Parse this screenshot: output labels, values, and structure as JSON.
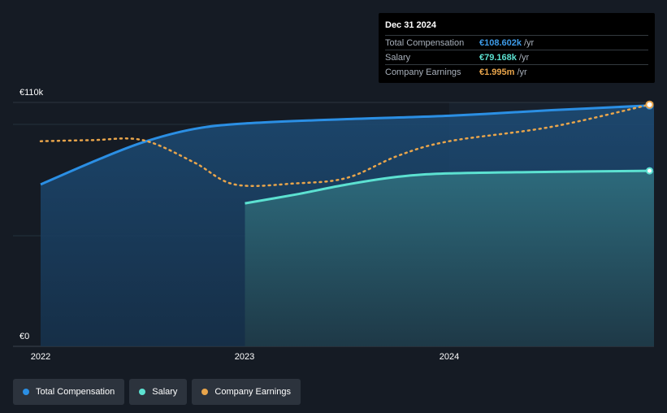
{
  "chart_data": {
    "type": "line",
    "title": "",
    "x_ticks": [
      "2022",
      "2023",
      "2024"
    ],
    "y_axis": {
      "min_label": "€0",
      "max_label": "€110k",
      "ylim": [
        0,
        110
      ],
      "unit": "k EUR"
    },
    "series": [
      {
        "name": "Total Compensation",
        "color": "#2b8fe4",
        "style": "solid-area",
        "points": [
          [
            2022.0,
            73
          ],
          [
            2022.25,
            83
          ],
          [
            2022.5,
            92
          ],
          [
            2022.75,
            98
          ],
          [
            2023.0,
            100.5
          ],
          [
            2023.5,
            102.5
          ],
          [
            2024.0,
            104
          ],
          [
            2024.5,
            106.5
          ],
          [
            2024.98,
            108.602
          ]
        ]
      },
      {
        "name": "Salary",
        "color": "#5ce1d1",
        "style": "solid-area",
        "points": [
          [
            2023.0,
            64.5
          ],
          [
            2023.25,
            68.5
          ],
          [
            2023.5,
            73
          ],
          [
            2023.75,
            76.5
          ],
          [
            2024.0,
            78
          ],
          [
            2024.5,
            78.7
          ],
          [
            2024.98,
            79.168
          ]
        ]
      },
      {
        "name": "Company Earnings",
        "color": "#e9a54b",
        "style": "dotted",
        "points": [
          [
            2022.0,
            92.5
          ],
          [
            2022.25,
            93
          ],
          [
            2022.5,
            93
          ],
          [
            2022.75,
            83
          ],
          [
            2022.95,
            73
          ],
          [
            2023.25,
            73.5
          ],
          [
            2023.5,
            76
          ],
          [
            2023.75,
            86
          ],
          [
            2024.0,
            92.5
          ],
          [
            2024.5,
            99
          ],
          [
            2024.98,
            109
          ]
        ]
      }
    ]
  },
  "tooltip": {
    "date": "Dec 31 2024",
    "rows": [
      {
        "label": "Total Compensation",
        "value": "€108.602k",
        "unit": "/yr",
        "color": "#3d9be9"
      },
      {
        "label": "Salary",
        "value": "€79.168k",
        "unit": "/yr",
        "color": "#5ce1d1"
      },
      {
        "label": "Company Earnings",
        "value": "€1.995m",
        "unit": "/yr",
        "color": "#e9a54b"
      }
    ]
  },
  "legend": [
    {
      "label": "Total Compensation",
      "color": "#2b8fe4"
    },
    {
      "label": "Salary",
      "color": "#5ce1d1"
    },
    {
      "label": "Company Earnings",
      "color": "#e9a54b"
    }
  ]
}
